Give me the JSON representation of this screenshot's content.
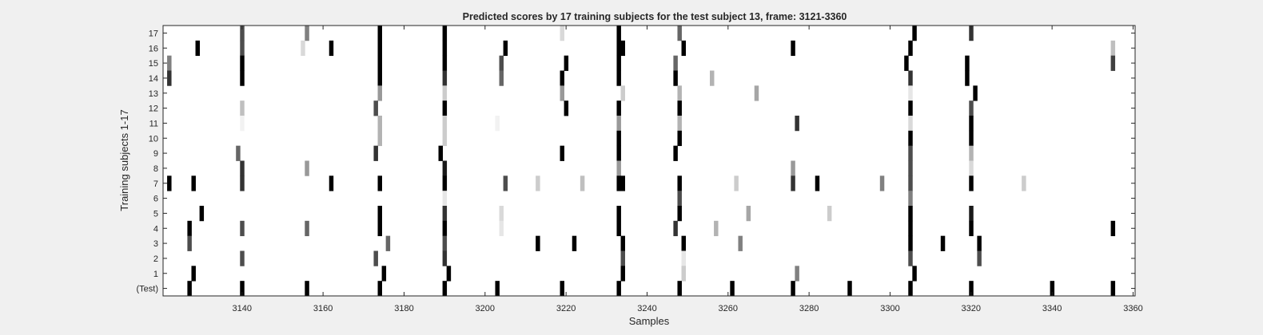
{
  "chart_data": {
    "type": "heatmap",
    "title": "Predicted scores by 17 training subjects for the test subject 13, frame: 3121-3360",
    "xlabel": "Samples",
    "ylabel": "Training subjects 1-17",
    "xlim": [
      3121,
      3360
    ],
    "xticks": [
      "3140",
      "3160",
      "3180",
      "3200",
      "3220",
      "3240",
      "3260",
      "3280",
      "3300",
      "3320",
      "3340",
      "3360"
    ],
    "xtick_values": [
      3140,
      3160,
      3180,
      3200,
      3220,
      3240,
      3260,
      3280,
      3300,
      3320,
      3340,
      3360
    ],
    "rows": [
      "17",
      "16",
      "15",
      "14",
      "13",
      "12",
      "11",
      "10",
      "9",
      "8",
      "7",
      "6",
      "5",
      "4",
      "3",
      "2",
      "1",
      "(Test)"
    ],
    "colormap": "grayscale, white = 0, black = 1",
    "background_color": "#ffffff",
    "figure_color": "#f0f0f0",
    "marks": [
      {
        "row": "17",
        "cells": [
          [
            3140,
            0.7
          ],
          [
            3156,
            0.5
          ],
          [
            3174,
            1
          ],
          [
            3190,
            1
          ],
          [
            3219,
            0.15
          ],
          [
            3233,
            1
          ],
          [
            3248,
            0.6
          ],
          [
            3306,
            1
          ],
          [
            3320,
            0.8
          ]
        ]
      },
      {
        "row": "16",
        "cells": [
          [
            3129,
            1
          ],
          [
            3140,
            0.7
          ],
          [
            3155,
            0.15
          ],
          [
            3162,
            1
          ],
          [
            3174,
            1
          ],
          [
            3190,
            1
          ],
          [
            3205,
            1
          ],
          [
            3233,
            1
          ],
          [
            3234,
            1
          ],
          [
            3249,
            1
          ],
          [
            3276,
            1
          ],
          [
            3305,
            1
          ],
          [
            3355,
            0.25
          ]
        ]
      },
      {
        "row": "15",
        "cells": [
          [
            3122,
            0.5
          ],
          [
            3140,
            1
          ],
          [
            3174,
            1
          ],
          [
            3190,
            1
          ],
          [
            3204,
            0.7
          ],
          [
            3220,
            1
          ],
          [
            3233,
            1
          ],
          [
            3247,
            0.6
          ],
          [
            3304,
            1
          ],
          [
            3319,
            1
          ],
          [
            3355,
            0.75
          ]
        ]
      },
      {
        "row": "14",
        "cells": [
          [
            3122,
            0.8
          ],
          [
            3140,
            1
          ],
          [
            3174,
            1
          ],
          [
            3190,
            0.8
          ],
          [
            3204,
            0.6
          ],
          [
            3219,
            1
          ],
          [
            3233,
            1
          ],
          [
            3247,
            1
          ],
          [
            3256,
            0.3
          ],
          [
            3305,
            0.8
          ],
          [
            3319,
            1
          ]
        ]
      },
      {
        "row": "13",
        "cells": [
          [
            3174,
            0.4
          ],
          [
            3190,
            0.2
          ],
          [
            3219,
            0.4
          ],
          [
            3234,
            0.2
          ],
          [
            3248,
            0.3
          ],
          [
            3267,
            0.35
          ],
          [
            3305,
            0.1
          ],
          [
            3321,
            1
          ]
        ]
      },
      {
        "row": "12",
        "cells": [
          [
            3140,
            0.25
          ],
          [
            3173,
            0.7
          ],
          [
            3190,
            1
          ],
          [
            3220,
            1
          ],
          [
            3233,
            1
          ],
          [
            3248,
            1
          ],
          [
            3305,
            1
          ],
          [
            3320,
            0.7
          ]
        ]
      },
      {
        "row": "11",
        "cells": [
          [
            3140,
            0.05
          ],
          [
            3174,
            0.3
          ],
          [
            3190,
            0.2
          ],
          [
            3203,
            0.05
          ],
          [
            3233,
            0.4
          ],
          [
            3248,
            0.3
          ],
          [
            3277,
            0.8
          ],
          [
            3305,
            0.15
          ],
          [
            3320,
            1
          ]
        ]
      },
      {
        "row": "10",
        "cells": [
          [
            3174,
            0.3
          ],
          [
            3190,
            0.2
          ],
          [
            3233,
            1
          ],
          [
            3248,
            1
          ],
          [
            3305,
            1
          ],
          [
            3320,
            1
          ]
        ]
      },
      {
        "row": "9",
        "cells": [
          [
            3139,
            0.6
          ],
          [
            3173,
            0.8
          ],
          [
            3189,
            1
          ],
          [
            3219,
            1
          ],
          [
            3233,
            1
          ],
          [
            3247,
            1
          ],
          [
            3305,
            0.7
          ],
          [
            3320,
            0.3
          ]
        ]
      },
      {
        "row": "8",
        "cells": [
          [
            3140,
            0.8
          ],
          [
            3156,
            0.4
          ],
          [
            3190,
            0.9
          ],
          [
            3233,
            0.4
          ],
          [
            3276,
            0.4
          ],
          [
            3305,
            0.7
          ],
          [
            3320,
            0.15
          ]
        ]
      },
      {
        "row": "7",
        "cells": [
          [
            3122,
            1
          ],
          [
            3128,
            1
          ],
          [
            3140,
            0.8
          ],
          [
            3162,
            1
          ],
          [
            3174,
            1
          ],
          [
            3190,
            1
          ],
          [
            3205,
            0.7
          ],
          [
            3213,
            0.2
          ],
          [
            3224,
            0.25
          ],
          [
            3233,
            1
          ],
          [
            3234,
            1
          ],
          [
            3248,
            1
          ],
          [
            3262,
            0.2
          ],
          [
            3276,
            0.8
          ],
          [
            3282,
            1
          ],
          [
            3298,
            0.5
          ],
          [
            3305,
            0.7
          ],
          [
            3320,
            1
          ],
          [
            3333,
            0.2
          ]
        ]
      },
      {
        "row": "6",
        "cells": [
          [
            3190,
            0.1
          ],
          [
            3248,
            0.7
          ],
          [
            3305,
            0.5
          ]
        ]
      },
      {
        "row": "5",
        "cells": [
          [
            3130,
            1
          ],
          [
            3174,
            1
          ],
          [
            3190,
            0.8
          ],
          [
            3204,
            0.15
          ],
          [
            3233,
            1
          ],
          [
            3248,
            1
          ],
          [
            3265,
            0.35
          ],
          [
            3285,
            0.2
          ],
          [
            3305,
            1
          ],
          [
            3320,
            0.9
          ]
        ]
      },
      {
        "row": "4",
        "cells": [
          [
            3127,
            1
          ],
          [
            3140,
            0.7
          ],
          [
            3156,
            0.6
          ],
          [
            3174,
            1
          ],
          [
            3190,
            1
          ],
          [
            3204,
            0.1
          ],
          [
            3233,
            1
          ],
          [
            3247,
            0.8
          ],
          [
            3257,
            0.3
          ],
          [
            3305,
            1
          ],
          [
            3320,
            1
          ],
          [
            3355,
            1
          ]
        ]
      },
      {
        "row": "3",
        "cells": [
          [
            3127,
            0.7
          ],
          [
            3176,
            0.6
          ],
          [
            3190,
            0.7
          ],
          [
            3213,
            1
          ],
          [
            3222,
            1
          ],
          [
            3234,
            1
          ],
          [
            3249,
            1
          ],
          [
            3263,
            0.5
          ],
          [
            3305,
            1
          ],
          [
            3313,
            1
          ],
          [
            3322,
            1
          ]
        ]
      },
      {
        "row": "2",
        "cells": [
          [
            3140,
            0.7
          ],
          [
            3173,
            0.7
          ],
          [
            3190,
            0.8
          ],
          [
            3234,
            0.7
          ],
          [
            3249,
            0.1
          ],
          [
            3305,
            0.7
          ],
          [
            3322,
            0.7
          ]
        ]
      },
      {
        "row": "1",
        "cells": [
          [
            3128,
            1
          ],
          [
            3175,
            1
          ],
          [
            3191,
            1
          ],
          [
            3234,
            1
          ],
          [
            3249,
            0.2
          ],
          [
            3277,
            0.5
          ],
          [
            3306,
            1
          ]
        ]
      },
      {
        "row": "(Test)",
        "cells": [
          [
            3127,
            1
          ],
          [
            3140,
            1
          ],
          [
            3156,
            1
          ],
          [
            3174,
            1
          ],
          [
            3190,
            1
          ],
          [
            3203,
            1
          ],
          [
            3219,
            1
          ],
          [
            3233,
            1
          ],
          [
            3248,
            1
          ],
          [
            3261,
            1
          ],
          [
            3276,
            1
          ],
          [
            3290,
            1
          ],
          [
            3305,
            1
          ],
          [
            3320,
            1
          ],
          [
            3340,
            1
          ],
          [
            3355,
            1
          ]
        ]
      }
    ]
  }
}
